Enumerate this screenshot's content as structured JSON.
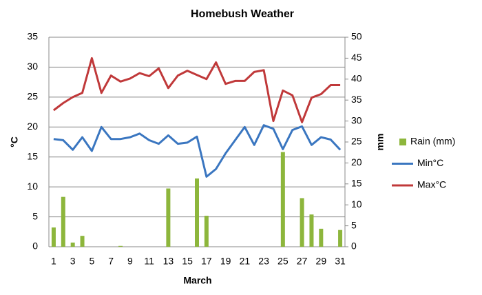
{
  "chart_data": {
    "type": "combo",
    "title": "Homebush Weather",
    "x_label": "March",
    "y_label": "°C",
    "y2_label": "mm",
    "categories": [
      1,
      null,
      3,
      null,
      5,
      null,
      7,
      null,
      9,
      null,
      11,
      null,
      13,
      null,
      15,
      null,
      17,
      null,
      19,
      null,
      21,
      null,
      23,
      null,
      25,
      null,
      27,
      null,
      29,
      null,
      31
    ],
    "ylim": [
      0,
      35
    ],
    "yticks": [
      0,
      5,
      10,
      15,
      20,
      25,
      30,
      35
    ],
    "y2lim": [
      0,
      50
    ],
    "y2ticks": [
      0,
      5,
      10,
      15,
      20,
      25,
      30,
      35,
      40,
      45,
      50
    ],
    "grid": true,
    "legend": "right",
    "series": [
      {
        "name": "Rain (mm)",
        "type": "bar",
        "axis": "y2",
        "color": "#8db63c",
        "values": [
          4.6,
          11.9,
          1,
          2.6,
          0,
          0,
          0,
          0.2,
          0,
          0,
          0,
          0,
          13.9,
          0,
          0,
          16.3,
          7.4,
          0,
          0,
          0,
          0,
          0,
          0,
          0,
          22.6,
          0,
          11.6,
          7.7,
          4.3,
          0,
          4.0
        ]
      },
      {
        "name": "Min°C",
        "type": "line",
        "color": "#3a76c0",
        "values": [
          18,
          17.8,
          16.2,
          18.3,
          16,
          20,
          18,
          18,
          18.3,
          18.9,
          17.8,
          17.2,
          18.6,
          17.2,
          17.4,
          18.4,
          11.7,
          13,
          15.6,
          17.8,
          20,
          17,
          20.3,
          19.7,
          16.3,
          19.5,
          20.1,
          17,
          18.3,
          17.9,
          16.2
        ]
      },
      {
        "name": "Max°C",
        "type": "line",
        "color": "#c0393a",
        "values": [
          22.8,
          24,
          25,
          25.7,
          31.5,
          25.7,
          28.6,
          27.6,
          28.1,
          29,
          28.5,
          29.8,
          26.5,
          28.6,
          29.4,
          28.7,
          28,
          30.8,
          27.2,
          27.7,
          27.7,
          29.2,
          29.5,
          21,
          26.1,
          25.3,
          20.8,
          24.9,
          25.5,
          27,
          27
        ]
      }
    ]
  }
}
